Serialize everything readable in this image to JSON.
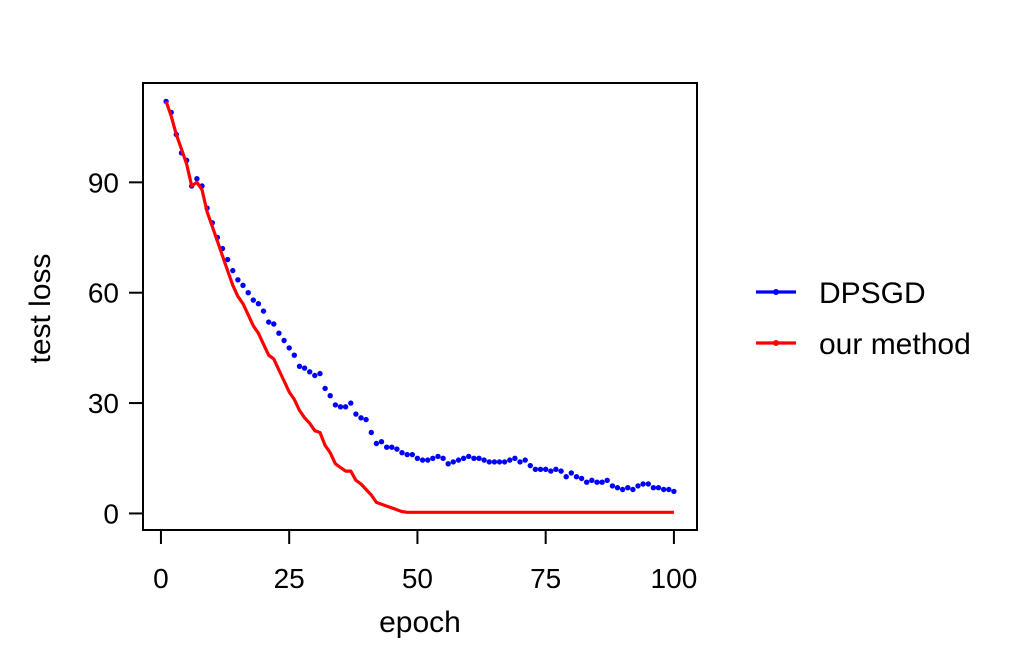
{
  "chart_data": {
    "type": "line",
    "xlabel": "epoch",
    "ylabel": "test loss",
    "xlim": [
      -3.5,
      104.5
    ],
    "ylim": [
      -4.5,
      117
    ],
    "xticks": [
      0,
      25,
      50,
      75,
      100
    ],
    "yticks": [
      0,
      30,
      60,
      90
    ],
    "legend": "right",
    "grid": false,
    "series": [
      {
        "name": "DPSGD",
        "color": "#0000ff",
        "style": "dotted-markers",
        "x": [
          1,
          2,
          3,
          4,
          5,
          6,
          7,
          8,
          9,
          10,
          11,
          12,
          13,
          14,
          15,
          16,
          17,
          18,
          19,
          20,
          21,
          22,
          23,
          24,
          25,
          26,
          27,
          28,
          29,
          30,
          31,
          32,
          33,
          34,
          35,
          36,
          37,
          38,
          39,
          40,
          41,
          42,
          43,
          44,
          45,
          46,
          47,
          48,
          49,
          50,
          51,
          52,
          53,
          54,
          55,
          56,
          57,
          58,
          59,
          60,
          61,
          62,
          63,
          64,
          65,
          66,
          67,
          68,
          69,
          70,
          71,
          72,
          73,
          74,
          75,
          76,
          77,
          78,
          79,
          80,
          81,
          82,
          83,
          84,
          85,
          86,
          87,
          88,
          89,
          90,
          91,
          92,
          93,
          94,
          95,
          96,
          97,
          98,
          99,
          100
        ],
        "values": [
          112,
          109,
          103,
          98,
          96,
          89,
          91,
          89,
          83,
          79,
          75,
          72,
          69,
          66,
          63.5,
          62,
          60,
          58,
          57,
          55,
          52,
          51.5,
          49,
          47,
          45,
          43,
          40,
          39.5,
          38.5,
          37.5,
          38,
          34,
          32,
          29.5,
          29,
          29,
          30,
          27,
          26,
          25.5,
          22,
          19,
          19.5,
          18,
          18,
          17.5,
          16.5,
          16,
          16,
          15,
          14.5,
          14.5,
          15,
          15.5,
          15,
          13.5,
          14,
          14.5,
          15,
          15.5,
          15,
          15,
          14.5,
          14,
          14,
          14,
          14,
          14.5,
          15,
          14,
          14.5,
          13,
          12,
          12,
          12,
          11.5,
          12,
          11.5,
          10,
          11,
          10,
          9.5,
          8.5,
          9,
          8.5,
          8.5,
          9,
          7.5,
          7,
          6.5,
          7,
          6.5,
          7.5,
          8,
          8,
          7,
          7,
          6.5,
          6.5,
          6
        ]
      },
      {
        "name": "our method",
        "color": "#ff0000",
        "style": "line",
        "x": [
          1,
          2,
          3,
          4,
          5,
          6,
          7,
          8,
          9,
          10,
          11,
          12,
          13,
          14,
          15,
          16,
          17,
          18,
          19,
          20,
          21,
          22,
          23,
          24,
          25,
          26,
          27,
          28,
          29,
          30,
          31,
          32,
          33,
          34,
          35,
          36,
          37,
          38,
          39,
          40,
          41,
          42,
          43,
          44,
          45,
          46,
          47,
          48,
          49,
          50,
          51,
          52,
          53,
          54,
          55,
          56,
          57,
          58,
          59,
          60,
          61,
          62,
          63,
          64,
          65,
          66,
          67,
          68,
          69,
          70,
          71,
          72,
          73,
          74,
          75,
          76,
          77,
          78,
          79,
          80,
          81,
          82,
          83,
          84,
          85,
          86,
          87,
          88,
          89,
          90,
          91,
          92,
          93,
          94,
          95,
          96,
          97,
          98,
          99,
          100
        ],
        "values": [
          112,
          108,
          103,
          99,
          95,
          89,
          90,
          88,
          82,
          78,
          74,
          70,
          66,
          62,
          59,
          57,
          54,
          51,
          49,
          46,
          43,
          42,
          39,
          36,
          33,
          31,
          28,
          26,
          24.5,
          22.5,
          22,
          18.5,
          16.5,
          13.5,
          12.5,
          11.5,
          11.5,
          9,
          8,
          6.5,
          5,
          3,
          2.5,
          2,
          1.5,
          1,
          0.5,
          0.3,
          0.3,
          0.3,
          0.3,
          0.3,
          0.3,
          0.3,
          0.3,
          0.3,
          0.3,
          0.3,
          0.3,
          0.3,
          0.3,
          0.3,
          0.3,
          0.3,
          0.3,
          0.3,
          0.3,
          0.3,
          0.3,
          0.3,
          0.3,
          0.3,
          0.3,
          0.3,
          0.3,
          0.3,
          0.3,
          0.3,
          0.3,
          0.3,
          0.3,
          0.3,
          0.3,
          0.3,
          0.3,
          0.3,
          0.3,
          0.3,
          0.3,
          0.3,
          0.3,
          0.3,
          0.3,
          0.3,
          0.3,
          0.3,
          0.3,
          0.3,
          0.3,
          0.3
        ]
      }
    ]
  }
}
